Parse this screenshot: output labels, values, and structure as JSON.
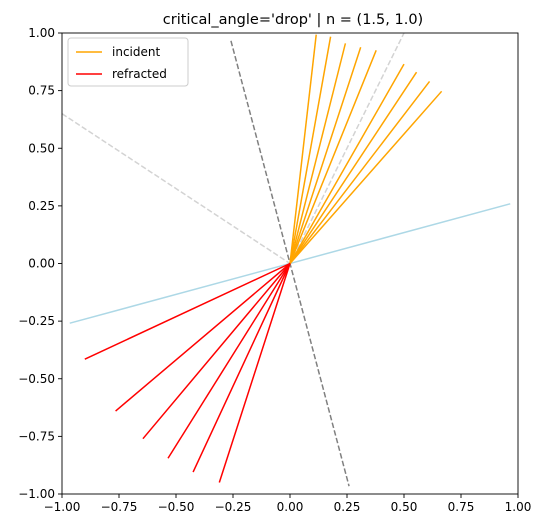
{
  "chart_data": {
    "type": "line",
    "title": "critical_angle='drop' | n = (1.5, 1.0)",
    "xlabel": "",
    "ylabel": "",
    "xlim": [
      -1.0,
      1.0
    ],
    "ylim": [
      -1.0,
      1.0
    ],
    "xticks": [
      "−1.00",
      "−0.75",
      "−0.50",
      "−0.25",
      "0.00",
      "0.25",
      "0.50",
      "0.75",
      "1.00"
    ],
    "yticks": [
      "−1.00",
      "−0.75",
      "−0.50",
      "−0.25",
      "0.00",
      "0.25",
      "0.50",
      "0.75",
      "1.00"
    ],
    "xtick_values": [
      -1.0,
      -0.75,
      -0.5,
      -0.25,
      0.0,
      0.25,
      0.5,
      0.75,
      1.0
    ],
    "ytick_values": [
      -1.0,
      -0.75,
      -0.5,
      -0.25,
      0.0,
      0.25,
      0.5,
      0.75,
      1.0
    ],
    "grid": false,
    "legend": {
      "placement": "top-left",
      "entries": [
        {
          "label": "incident",
          "color": "#ffa500"
        },
        {
          "label": "refracted",
          "color": "#ff0000"
        }
      ]
    },
    "reference_lines": [
      {
        "role": "interface",
        "color": "#add8e6",
        "style": "solid",
        "x": [
          -0.966,
          0.966
        ],
        "y": [
          -0.259,
          0.259
        ]
      },
      {
        "role": "normal",
        "color": "#808080",
        "style": "dashed",
        "x": [
          -0.259,
          0.259
        ],
        "y": [
          0.966,
          -0.966
        ]
      },
      {
        "role": "critical-angle",
        "color": "#d3d3d3",
        "style": "dashed",
        "x": [
          -1.0,
          0.0
        ],
        "y": [
          0.65,
          0.0
        ]
      },
      {
        "role": "critical-angle",
        "color": "#d3d3d3",
        "style": "dashed",
        "x": [
          0.0,
          0.52
        ],
        "y": [
          0.0,
          1.04
        ]
      }
    ],
    "incident_rays": [
      {
        "x": [
          0.0,
          0.115
        ],
        "y": [
          0.0,
          0.993
        ]
      },
      {
        "x": [
          0.0,
          0.178
        ],
        "y": [
          0.0,
          0.984
        ]
      },
      {
        "x": [
          0.0,
          0.243
        ],
        "y": [
          0.0,
          0.955
        ]
      },
      {
        "x": [
          0.0,
          0.31
        ],
        "y": [
          0.0,
          0.938
        ]
      },
      {
        "x": [
          0.0,
          0.378
        ],
        "y": [
          0.0,
          0.925
        ]
      },
      {
        "x": [
          0.0,
          0.5
        ],
        "y": [
          0.0,
          0.865
        ]
      },
      {
        "x": [
          0.0,
          0.555
        ],
        "y": [
          0.0,
          0.83
        ]
      },
      {
        "x": [
          0.0,
          0.612
        ],
        "y": [
          0.0,
          0.79
        ]
      },
      {
        "x": [
          0.0,
          0.665
        ],
        "y": [
          0.0,
          0.747
        ]
      }
    ],
    "refracted_rays": [
      {
        "x": [
          0.0,
          -0.9
        ],
        "y": [
          0.0,
          -0.415
        ]
      },
      {
        "x": [
          0.0,
          -0.765
        ],
        "y": [
          0.0,
          -0.64
        ]
      },
      {
        "x": [
          0.0,
          -0.645
        ],
        "y": [
          0.0,
          -0.76
        ]
      },
      {
        "x": [
          0.0,
          -0.535
        ],
        "y": [
          0.0,
          -0.845
        ]
      },
      {
        "x": [
          0.0,
          -0.425
        ],
        "y": [
          0.0,
          -0.905
        ]
      },
      {
        "x": [
          0.0,
          -0.31
        ],
        "y": [
          0.0,
          -0.95
        ]
      }
    ]
  }
}
